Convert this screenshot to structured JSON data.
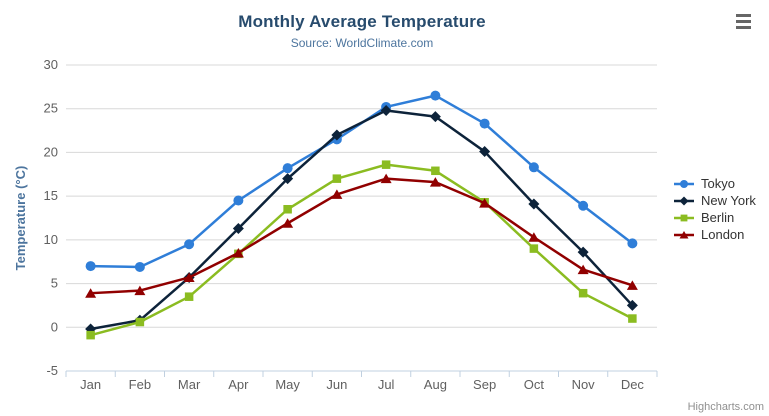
{
  "chart_data": {
    "type": "line",
    "title": "Monthly Average Temperature",
    "subtitle": "Source: WorldClimate.com",
    "categories": [
      "Jan",
      "Feb",
      "Mar",
      "Apr",
      "May",
      "Jun",
      "Jul",
      "Aug",
      "Sep",
      "Oct",
      "Nov",
      "Dec"
    ],
    "xlabel": "",
    "ylabel": "Temperature (°C)",
    "ylim": [
      -5,
      30
    ],
    "ytick_step": 5,
    "grid": true,
    "legend_position": "right",
    "series": [
      {
        "name": "Tokyo",
        "color": "#2f7ed8",
        "marker": "circle",
        "values": [
          7.0,
          6.9,
          9.5,
          14.5,
          18.2,
          21.5,
          25.2,
          26.5,
          23.3,
          18.3,
          13.9,
          9.6
        ]
      },
      {
        "name": "New York",
        "color": "#0d233a",
        "marker": "diamond",
        "values": [
          -0.2,
          0.8,
          5.7,
          11.3,
          17.0,
          22.0,
          24.8,
          24.1,
          20.1,
          14.1,
          8.6,
          2.5
        ]
      },
      {
        "name": "Berlin",
        "color": "#8bbc21",
        "marker": "square",
        "values": [
          -0.9,
          0.6,
          3.5,
          8.4,
          13.5,
          17.0,
          18.6,
          17.9,
          14.3,
          9.0,
          3.9,
          1.0
        ]
      },
      {
        "name": "London",
        "color": "#910000",
        "marker": "triangle",
        "values": [
          3.9,
          4.2,
          5.7,
          8.5,
          11.9,
          15.2,
          17.0,
          16.6,
          14.2,
          10.3,
          6.6,
          4.8
        ]
      }
    ],
    "credits": "Highcharts.com",
    "colors": {
      "title": "#274b6d",
      "subtitle": "#4d759e",
      "axis_title": "#4d759e",
      "axis_label": "#606060",
      "gridline": "#d8d8d8",
      "axis_line": "#c0d0e0",
      "legend_text": "#333333",
      "credits_text": "#909090",
      "menu_icon": "#666666"
    },
    "icons": {
      "context_menu": "hamburger-icon"
    }
  }
}
